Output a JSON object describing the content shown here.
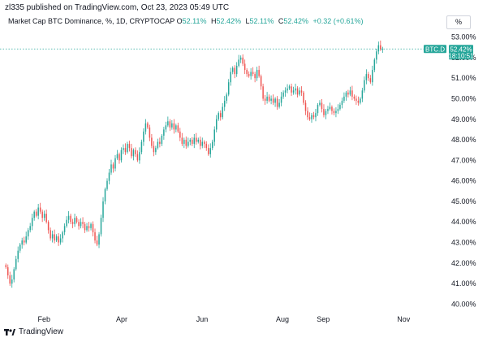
{
  "header": {
    "publisher_line": "zl335 published on TradingView.com, Oct 23, 2023 05:49 UTC",
    "symbol_title": "Market Cap BTC Dominance, %, 1D, CRYPTOCAP",
    "ohlc": [
      {
        "label": "O",
        "value": "52.11%"
      },
      {
        "label": "H",
        "value": "52.42%"
      },
      {
        "label": "L",
        "value": "52.11%"
      },
      {
        "label": "C",
        "value": "52.42%"
      }
    ],
    "change": "+0.32 (+0.61%)",
    "scale_button": "%"
  },
  "price_tag": {
    "symbol": "BTC.D",
    "price": "52.42%",
    "countdown": "18:10:51"
  },
  "footer": {
    "brand": "TradingView"
  },
  "colors": {
    "up": "#26a69a",
    "down": "#ef5350",
    "price_line": "#26a69a",
    "axis_text": "#131722"
  },
  "chart_data": {
    "type": "candlestick",
    "symbol": "BTC.D",
    "ylim": [
      39.7,
      53.3
    ],
    "y_ticks": [
      "53.00%",
      "52.00%",
      "51.00%",
      "50.00%",
      "49.00%",
      "48.00%",
      "47.00%",
      "46.00%",
      "45.00%",
      "44.00%",
      "43.00%",
      "42.00%",
      "41.00%",
      "40.00%"
    ],
    "y_tick_values": [
      53,
      52,
      51,
      50,
      49,
      48,
      47,
      46,
      45,
      44,
      43,
      42,
      41,
      40
    ],
    "x_ticks": [
      {
        "label": "Feb",
        "day": 31
      },
      {
        "label": "Apr",
        "day": 90
      },
      {
        "label": "Jun",
        "day": 151
      },
      {
        "label": "Aug",
        "day": 212
      },
      {
        "label": "Sep",
        "day": 243
      },
      {
        "label": "Nov",
        "day": 304
      }
    ],
    "x_domain_days": [
      0,
      318
    ],
    "last_price": 52.42,
    "closes": [
      41.8,
      41.4,
      41.0,
      41.2,
      41.7,
      42.2,
      42.6,
      42.9,
      43.1,
      43.0,
      43.3,
      43.6,
      43.8,
      44.2,
      44.5,
      44.3,
      44.7,
      44.5,
      44.2,
      44.4,
      44.0,
      43.6,
      43.2,
      43.4,
      43.1,
      43.3,
      43.0,
      43.2,
      43.5,
      43.8,
      44.1,
      44.3,
      44.0,
      43.9,
      44.2,
      44.0,
      43.8,
      44.0,
      43.9,
      43.6,
      43.8,
      43.7,
      43.9,
      43.5,
      43.1,
      42.9,
      43.4,
      44.2,
      45.0,
      45.6,
      46.0,
      46.4,
      46.8,
      46.6,
      47.1,
      47.3,
      47.0,
      47.5,
      47.6,
      47.4,
      47.8,
      47.6,
      47.2,
      47.5,
      47.3,
      47.0,
      47.4,
      47.9,
      48.4,
      48.8,
      48.6,
      48.1,
      47.7,
      47.4,
      47.6,
      47.9,
      47.8,
      48.2,
      48.5,
      48.7,
      48.9,
      48.6,
      48.8,
      48.5,
      48.7,
      48.4,
      48.1,
      47.8,
      48.0,
      47.7,
      47.9,
      48.0,
      47.8,
      48.1,
      47.9,
      48.0,
      47.7,
      47.9,
      47.8,
      47.6,
      47.3,
      47.6,
      47.9,
      48.5,
      49.0,
      49.3,
      49.1,
      49.6,
      49.9,
      50.2,
      50.8,
      51.3,
      51.5,
      51.2,
      51.6,
      51.9,
      52.0,
      51.7,
      51.4,
      51.2,
      51.1,
      51.3,
      51.2,
      51.0,
      51.4,
      51.1,
      50.6,
      50.0,
      49.9,
      50.1,
      49.9,
      50.0,
      49.8,
      50.0,
      49.6,
      49.8,
      50.1,
      50.3,
      50.4,
      50.5,
      50.6,
      50.3,
      50.4,
      50.5,
      50.2,
      50.4,
      50.3,
      49.8,
      49.4,
      49.1,
      49.0,
      49.2,
      49.1,
      49.3,
      49.7,
      49.8,
      49.5,
      49.2,
      49.4,
      49.5,
      49.6,
      49.4,
      49.3,
      49.4,
      49.5,
      49.7,
      49.9,
      50.1,
      50.3,
      50.2,
      50.4,
      50.1,
      50.0,
      49.9,
      49.8,
      50.0,
      50.4,
      50.9,
      51.2,
      51.0,
      50.8,
      51.4,
      51.9,
      52.3,
      52.6,
      52.4,
      52.42
    ],
    "first_open": 41.9
  }
}
